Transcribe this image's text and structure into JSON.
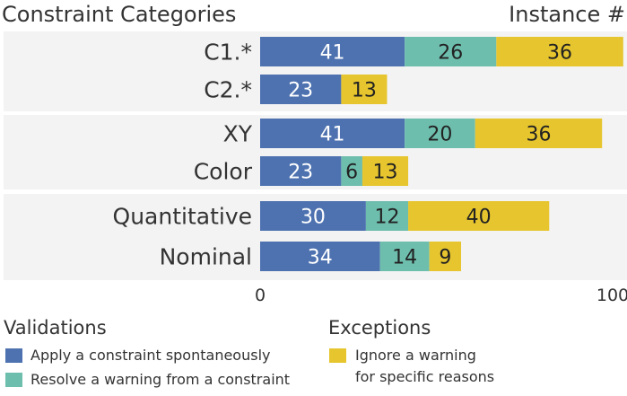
{
  "headers": {
    "left": "Constraint Categories",
    "right": "Instance #"
  },
  "legend": {
    "validations_title": "Validations",
    "exceptions_title": "Exceptions",
    "items": [
      {
        "label": "Apply a constraint spontaneously",
        "color": "#4e72b0"
      },
      {
        "label": "Resolve a warning from a constraint",
        "color": "#6ebeae"
      },
      {
        "label_line1": "Ignore a warning",
        "label_line2": "for specific reasons",
        "color": "#e6c52e"
      }
    ]
  },
  "chart_data": {
    "type": "bar",
    "orientation": "horizontal",
    "stacked": true,
    "categories": [
      "C1.*",
      "C2.*",
      "XY",
      "Color",
      "Quantitative",
      "Nominal"
    ],
    "groups": [
      [
        "C1.*",
        "C2.*"
      ],
      [
        "XY",
        "Color"
      ],
      [
        "Quantitative",
        "Nominal"
      ]
    ],
    "series": [
      {
        "name": "Apply a constraint spontaneously",
        "color": "#4e72b0",
        "values": [
          41,
          23,
          41,
          23,
          30,
          34
        ]
      },
      {
        "name": "Resolve a warning from a constraint",
        "color": "#6ebeae",
        "values": [
          26,
          0,
          20,
          6,
          12,
          14
        ]
      },
      {
        "name": "Ignore a warning for specific reasons",
        "color": "#e6c52e",
        "values": [
          36,
          13,
          36,
          13,
          40,
          9
        ]
      }
    ],
    "xlim": [
      0,
      100
    ],
    "xticks": [
      "0",
      "100"
    ],
    "data_labels": true,
    "background_bands": true
  }
}
